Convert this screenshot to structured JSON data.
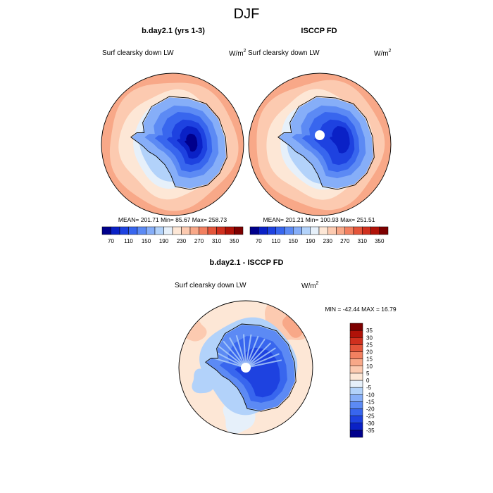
{
  "figure": {
    "season_title": "DJF"
  },
  "chart_data": [
    {
      "type": "heatmap",
      "projection": "south-polar-stereographic",
      "title": "b.day2.1 (yrs 1-3)",
      "field_label": "Surf clearsky down LW",
      "units": "W/m",
      "units_exp": "2",
      "stats_text": "MEAN= 201.71  Min=  85.67  Max= 258.73",
      "stats": {
        "mean": 201.71,
        "min": 85.67,
        "max": 258.73
      },
      "colorbar": {
        "orientation": "horizontal",
        "levels": [
          70,
          90,
          110,
          130,
          150,
          170,
          190,
          210,
          230,
          250,
          270,
          290,
          310,
          330,
          350
        ],
        "tick_labels": [
          "70",
          "110",
          "150",
          "190",
          "230",
          "270",
          "310",
          "350"
        ],
        "colors": [
          "#00008c",
          "#0a21c6",
          "#1e42e0",
          "#3866ee",
          "#5c8af4",
          "#86aef8",
          "#b2d2fa",
          "#e6f0fa",
          "#fde7d6",
          "#fccab0",
          "#f8a888",
          "#f28060",
          "#e4553a",
          "#d0301e",
          "#b01208",
          "#7d0000"
        ]
      }
    },
    {
      "type": "heatmap",
      "projection": "south-polar-stereographic",
      "title": "ISCCP FD",
      "field_label": "Surf clearsky down LW",
      "units": "W/m",
      "units_exp": "2",
      "stats_text": "MEAN= 201.21  Min= 100.93  Max= 251.51",
      "stats": {
        "mean": 201.21,
        "min": 100.93,
        "max": 251.51
      },
      "colorbar": {
        "orientation": "horizontal",
        "levels": [
          70,
          90,
          110,
          130,
          150,
          170,
          190,
          210,
          230,
          250,
          270,
          290,
          310,
          330,
          350
        ],
        "tick_labels": [
          "70",
          "110",
          "150",
          "190",
          "230",
          "270",
          "310",
          "350"
        ],
        "colors": [
          "#00008c",
          "#0a21c6",
          "#1e42e0",
          "#3866ee",
          "#5c8af4",
          "#86aef8",
          "#b2d2fa",
          "#e6f0fa",
          "#fde7d6",
          "#fccab0",
          "#f8a888",
          "#f28060",
          "#e4553a",
          "#d0301e",
          "#b01208",
          "#7d0000"
        ]
      }
    },
    {
      "type": "heatmap",
      "projection": "south-polar-stereographic",
      "title": "b.day2.1 - ISCCP FD",
      "field_label": "Surf clearsky down LW",
      "units": "W/m",
      "units_exp": "2",
      "stats_text": "MIN = -42.44  MAX =  16.79",
      "stats": {
        "min": -42.44,
        "max": 16.79
      },
      "colorbar": {
        "orientation": "vertical",
        "levels": [
          -35,
          -30,
          -25,
          -20,
          -15,
          -10,
          -5,
          0,
          5,
          10,
          15,
          20,
          25,
          30,
          35
        ],
        "tick_labels": [
          "-35",
          "-30",
          "-25",
          "-20",
          "-15",
          "-10",
          "-5",
          "0",
          "5",
          "10",
          "15",
          "20",
          "25",
          "30",
          "35"
        ],
        "colors": [
          "#00008c",
          "#0a21c6",
          "#1e42e0",
          "#3866ee",
          "#5c8af4",
          "#86aef8",
          "#b2d2fa",
          "#e6f0fa",
          "#fde7d6",
          "#fccab0",
          "#f8a888",
          "#f28060",
          "#e4553a",
          "#d0301e",
          "#b01208",
          "#7d0000"
        ]
      }
    }
  ]
}
